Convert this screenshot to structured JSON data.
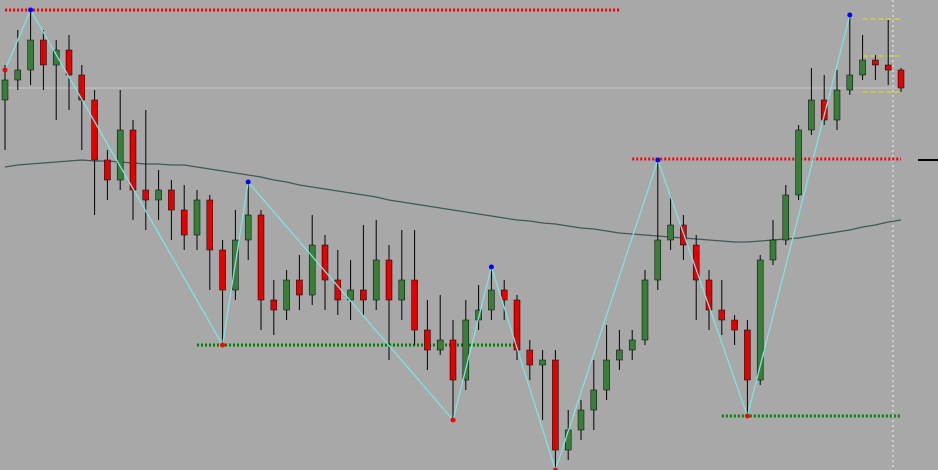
{
  "chart_data": {
    "type": "candlestick",
    "ylim": [
      0,
      470
    ],
    "up_color": "#3b7d3b",
    "down_color": "#e00000",
    "wick_color": "#000000",
    "ohlc": [
      [
        370,
        390,
        405,
        320
      ],
      [
        390,
        400,
        440,
        380
      ],
      [
        400,
        430,
        460,
        385
      ],
      [
        430,
        405,
        440,
        380
      ],
      [
        405,
        420,
        430,
        350
      ],
      [
        420,
        395,
        435,
        360
      ],
      [
        395,
        370,
        405,
        320
      ],
      [
        370,
        310,
        380,
        255
      ],
      [
        310,
        290,
        320,
        270
      ],
      [
        290,
        340,
        380,
        280
      ],
      [
        340,
        280,
        350,
        250
      ],
      [
        280,
        270,
        360,
        240
      ],
      [
        270,
        280,
        300,
        250
      ],
      [
        280,
        260,
        290,
        230
      ],
      [
        260,
        235,
        285,
        220
      ],
      [
        235,
        270,
        280,
        220
      ],
      [
        270,
        220,
        275,
        180
      ],
      [
        220,
        180,
        230,
        125
      ],
      [
        180,
        230,
        260,
        170
      ],
      [
        230,
        255,
        288,
        210
      ],
      [
        255,
        170,
        260,
        140
      ],
      [
        170,
        160,
        190,
        135
      ],
      [
        160,
        190,
        200,
        150
      ],
      [
        190,
        175,
        215,
        160
      ],
      [
        175,
        225,
        255,
        165
      ],
      [
        225,
        190,
        235,
        160
      ],
      [
        190,
        170,
        220,
        155
      ],
      [
        170,
        180,
        210,
        150
      ],
      [
        180,
        170,
        245,
        155
      ],
      [
        170,
        210,
        250,
        160
      ],
      [
        210,
        170,
        225,
        110
      ],
      [
        170,
        190,
        240,
        150
      ],
      [
        190,
        140,
        240,
        125
      ],
      [
        140,
        120,
        170,
        100
      ],
      [
        120,
        130,
        175,
        115
      ],
      [
        130,
        90,
        150,
        50
      ],
      [
        90,
        150,
        170,
        80
      ],
      [
        150,
        160,
        185,
        140
      ],
      [
        160,
        180,
        203,
        150
      ],
      [
        180,
        170,
        190,
        150
      ],
      [
        170,
        120,
        175,
        110
      ],
      [
        120,
        105,
        130,
        90
      ],
      [
        105,
        110,
        120,
        50
      ],
      [
        110,
        20,
        120,
        0
      ],
      [
        20,
        40,
        60,
        10
      ],
      [
        40,
        60,
        70,
        30
      ],
      [
        60,
        80,
        110,
        40
      ],
      [
        80,
        110,
        145,
        70
      ],
      [
        110,
        120,
        140,
        100
      ],
      [
        120,
        130,
        140,
        110
      ],
      [
        130,
        190,
        200,
        125
      ],
      [
        190,
        230,
        310,
        180
      ],
      [
        230,
        245,
        275,
        220
      ],
      [
        245,
        225,
        255,
        210
      ],
      [
        225,
        190,
        235,
        150
      ],
      [
        190,
        160,
        200,
        140
      ],
      [
        160,
        150,
        190,
        135
      ],
      [
        150,
        140,
        155,
        125
      ],
      [
        140,
        90,
        150,
        54
      ],
      [
        90,
        210,
        215,
        85
      ],
      [
        210,
        230,
        250,
        205
      ],
      [
        230,
        275,
        285,
        225
      ],
      [
        275,
        340,
        345,
        270
      ],
      [
        340,
        370,
        402,
        335
      ],
      [
        370,
        350,
        395,
        345
      ],
      [
        350,
        380,
        400,
        340
      ],
      [
        380,
        395,
        455,
        375
      ],
      [
        395,
        410,
        435,
        390
      ],
      [
        410,
        405,
        415,
        390
      ],
      [
        405,
        400,
        450,
        385
      ],
      [
        400,
        382,
        402,
        378
      ]
    ],
    "moving_average": {
      "color": "#3e5858",
      "values": [
        303,
        305,
        306,
        307,
        308,
        309,
        310,
        309,
        309,
        308,
        307,
        306,
        306,
        305,
        305,
        303,
        301,
        299,
        297,
        295,
        293,
        290,
        288,
        285,
        283,
        281,
        279,
        277,
        275,
        273,
        270,
        268,
        266,
        264,
        262,
        260,
        258,
        256,
        254,
        252,
        250,
        249,
        247,
        246,
        244,
        242,
        241,
        239,
        237,
        236,
        235,
        234,
        233,
        232,
        231,
        230,
        229,
        228,
        228,
        229,
        230,
        231,
        232,
        234,
        236,
        238,
        240,
        243,
        245,
        248,
        250
      ]
    },
    "zigzag": {
      "color": "#7fe3e3",
      "high_color": "#0000ff",
      "low_color": "#ff0000",
      "x": [
        0,
        2,
        17,
        19,
        35,
        38,
        43,
        51,
        58,
        66
      ],
      "values": [
        400,
        460,
        125,
        288,
        50,
        203,
        0,
        310,
        54,
        455
      ]
    },
    "levels": [
      {
        "value": 460,
        "from": 0,
        "to": 48,
        "color": "#ff0000",
        "dash": "dotted"
      },
      {
        "value": 311,
        "from": 49,
        "to": 70,
        "color": "#ff0000",
        "dash": "dotted"
      },
      {
        "value": 125,
        "from": 15,
        "to": 40,
        "color": "#008000",
        "dash": "dotted"
      },
      {
        "value": 54,
        "from": 56,
        "to": 70,
        "color": "#008000",
        "dash": "dotted"
      },
      {
        "value": 451,
        "from": 67,
        "to": 70,
        "color": "#e8e800",
        "dash": "dashed"
      },
      {
        "value": 414,
        "from": 67,
        "to": 70,
        "color": "#e8e800",
        "dash": "dashed"
      },
      {
        "value": 378,
        "from": 67,
        "to": 70,
        "color": "#e8e800",
        "dash": "dashed"
      },
      {
        "value": 382,
        "from": 0,
        "to": 70,
        "color": "#c8c8c8",
        "dash": "solid"
      }
    ]
  }
}
